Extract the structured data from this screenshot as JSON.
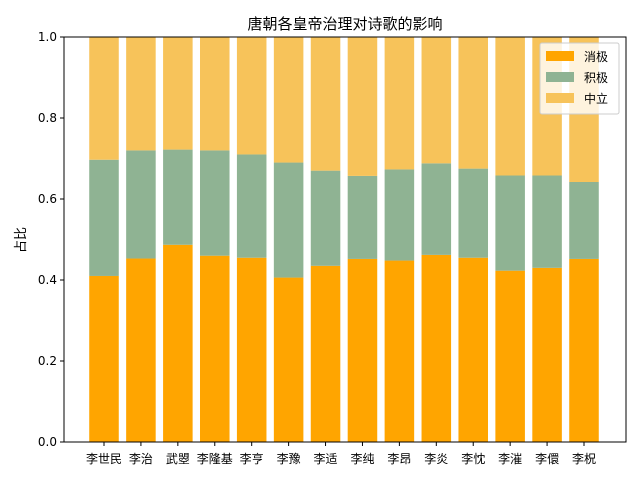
{
  "chart_data": {
    "type": "bar",
    "stacked": true,
    "title": "唐朝各皇帝治理对诗歌的影响",
    "xlabel": "",
    "ylabel": "占比",
    "ylim": [
      0,
      1
    ],
    "yticks": [
      "0.0",
      "0.2",
      "0.4",
      "0.6",
      "0.8",
      "1.0"
    ],
    "legend_position": "top-right",
    "categories": [
      "李世民",
      "李治",
      "武曌",
      "李隆基",
      "李亨",
      "李豫",
      "李适",
      "李纯",
      "李昂",
      "李炎",
      "李忱",
      "李漼",
      "李儇",
      "李柷"
    ],
    "series": [
      {
        "name": "消极",
        "color": "#ffa500",
        "values": [
          0.41,
          0.453,
          0.487,
          0.46,
          0.455,
          0.406,
          0.435,
          0.452,
          0.448,
          0.462,
          0.455,
          0.423,
          0.43,
          0.452
        ]
      },
      {
        "name": "积极",
        "color": "#8fb393",
        "values": [
          0.287,
          0.267,
          0.235,
          0.26,
          0.255,
          0.284,
          0.235,
          0.205,
          0.225,
          0.226,
          0.22,
          0.235,
          0.228,
          0.19
        ]
      },
      {
        "name": "中立",
        "color": "#f7c35a",
        "values": [
          0.303,
          0.28,
          0.278,
          0.28,
          0.29,
          0.31,
          0.33,
          0.343,
          0.327,
          0.312,
          0.325,
          0.342,
          0.342,
          0.358
        ]
      }
    ]
  }
}
